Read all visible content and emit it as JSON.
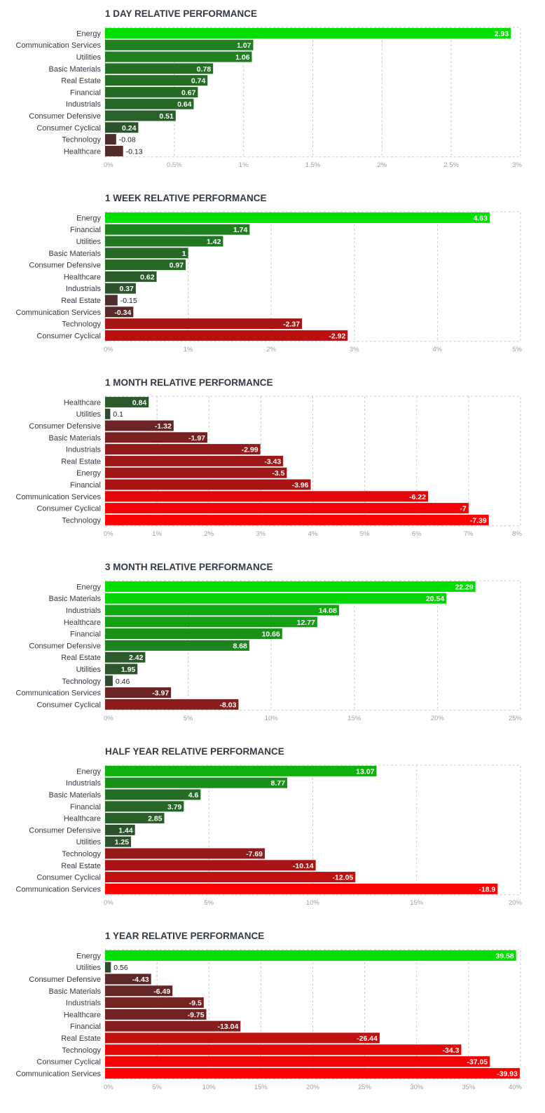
{
  "chart_data": [
    {
      "type": "bar",
      "orientation": "horizontal",
      "title": "1 DAY RELATIVE PERFORMANCE",
      "categories": [
        "Energy",
        "Communication Services",
        "Utilities",
        "Basic Materials",
        "Real Estate",
        "Financial",
        "Industrials",
        "Consumer Defensive",
        "Consumer Cyclical",
        "Technology",
        "Healthcare"
      ],
      "values": [
        2.93,
        1.07,
        1.06,
        0.78,
        0.74,
        0.67,
        0.64,
        0.51,
        0.24,
        -0.08,
        -0.13
      ],
      "value_labels": [
        "2.93",
        "1.07",
        "1.06",
        "0.78",
        "0.74",
        "0.67",
        "0.64",
        "0.51",
        "0.24",
        "-0.08",
        "-0.13"
      ],
      "xlim": [
        0,
        3
      ],
      "ticks": [
        0,
        0.5,
        1,
        1.5,
        2,
        2.5,
        3
      ],
      "tick_labels": [
        "0%",
        "0.5%",
        "1%",
        "1.5%",
        "2%",
        "2.5%",
        "3%"
      ],
      "bar_length": "absolute value",
      "grid": true
    },
    {
      "type": "bar",
      "orientation": "horizontal",
      "title": "1 WEEK RELATIVE PERFORMANCE",
      "categories": [
        "Energy",
        "Financial",
        "Utilities",
        "Basic Materials",
        "Consumer Defensive",
        "Healthcare",
        "Industrials",
        "Real Estate",
        "Communication Services",
        "Technology",
        "Consumer Cyclical"
      ],
      "values": [
        4.63,
        1.74,
        1.42,
        1,
        0.97,
        0.62,
        0.37,
        -0.15,
        -0.34,
        -2.37,
        -2.92
      ],
      "value_labels": [
        "4.63",
        "1.74",
        "1.42",
        "1",
        "0.97",
        "0.62",
        "0.37",
        "-0.15",
        "-0.34",
        "-2.37",
        "-2.92"
      ],
      "xlim": [
        0,
        5
      ],
      "ticks": [
        0,
        1,
        2,
        3,
        4,
        5
      ],
      "tick_labels": [
        "0%",
        "1%",
        "2%",
        "3%",
        "4%",
        "5%"
      ],
      "bar_length": "absolute value",
      "grid": true
    },
    {
      "type": "bar",
      "orientation": "horizontal",
      "title": "1 MONTH RELATIVE PERFORMANCE",
      "categories": [
        "Healthcare",
        "Utilities",
        "Consumer Defensive",
        "Basic Materials",
        "Industrials",
        "Real Estate",
        "Energy",
        "Financial",
        "Communication Services",
        "Consumer Cyclical",
        "Technology"
      ],
      "values": [
        0.84,
        0.1,
        -1.32,
        -1.97,
        -2.99,
        -3.43,
        -3.5,
        -3.96,
        -6.22,
        -7,
        -7.39
      ],
      "value_labels": [
        "0.84",
        "0.1",
        "-1.32",
        "-1.97",
        "-2.99",
        "-3.43",
        "-3.5",
        "-3.96",
        "-6.22",
        "-7",
        "-7.39"
      ],
      "xlim": [
        0,
        8
      ],
      "ticks": [
        0,
        1,
        2,
        3,
        4,
        5,
        6,
        7,
        8
      ],
      "tick_labels": [
        "0%",
        "1%",
        "2%",
        "3%",
        "4%",
        "5%",
        "6%",
        "7%",
        "8%"
      ],
      "bar_length": "absolute value",
      "grid": true
    },
    {
      "type": "bar",
      "orientation": "horizontal",
      "title": "3 MONTH RELATIVE PERFORMANCE",
      "categories": [
        "Energy",
        "Basic Materials",
        "Industrials",
        "Healthcare",
        "Financial",
        "Consumer Defensive",
        "Real Estate",
        "Utilities",
        "Technology",
        "Communication Services",
        "Consumer Cyclical"
      ],
      "values": [
        22.29,
        20.54,
        14.08,
        12.77,
        10.66,
        8.68,
        2.42,
        1.95,
        0.46,
        -3.97,
        -8.03
      ],
      "value_labels": [
        "22.29",
        "20.54",
        "14.08",
        "12.77",
        "10.66",
        "8.68",
        "2.42",
        "1.95",
        "0.46",
        "-3.97",
        "-8.03"
      ],
      "xlim": [
        0,
        25
      ],
      "ticks": [
        0,
        5,
        10,
        15,
        20,
        25
      ],
      "tick_labels": [
        "0%",
        "5%",
        "10%",
        "15%",
        "20%",
        "25%"
      ],
      "bar_length": "absolute value",
      "grid": true
    },
    {
      "type": "bar",
      "orientation": "horizontal",
      "title": "HALF YEAR RELATIVE PERFORMANCE",
      "categories": [
        "Energy",
        "Industrials",
        "Basic Materials",
        "Financial",
        "Healthcare",
        "Consumer Defensive",
        "Utilities",
        "Technology",
        "Real Estate",
        "Consumer Cyclical",
        "Communication Services"
      ],
      "values": [
        13.07,
        8.77,
        4.6,
        3.79,
        2.85,
        1.44,
        1.25,
        -7.69,
        -10.14,
        -12.05,
        -18.9
      ],
      "value_labels": [
        "13.07",
        "8.77",
        "4.6",
        "3.79",
        "2.85",
        "1.44",
        "1.25",
        "-7.69",
        "-10.14",
        "-12.05",
        "-18.9"
      ],
      "xlim": [
        0,
        20
      ],
      "ticks": [
        0,
        5,
        10,
        15,
        20
      ],
      "tick_labels": [
        "0%",
        "5%",
        "10%",
        "15%",
        "20%"
      ],
      "bar_length": "absolute value",
      "grid": true
    },
    {
      "type": "bar",
      "orientation": "horizontal",
      "title": "1 YEAR RELATIVE PERFORMANCE",
      "categories": [
        "Energy",
        "Utilities",
        "Consumer Defensive",
        "Basic Materials",
        "Industrials",
        "Healthcare",
        "Financial",
        "Real Estate",
        "Technology",
        "Consumer Cyclical",
        "Communication Services"
      ],
      "values": [
        39.58,
        0.56,
        -4.43,
        -6.49,
        -9.5,
        -9.75,
        -13.04,
        -26.44,
        -34.3,
        -37.05,
        -39.93
      ],
      "value_labels": [
        "39.58",
        "0.56",
        "-4.43",
        "-6.49",
        "-9.5",
        "-9.75",
        "-13.04",
        "-26.44",
        "-34.3",
        "-37.05",
        "-39.93"
      ],
      "xlim": [
        0,
        40
      ],
      "ticks": [
        0,
        5,
        10,
        15,
        20,
        25,
        30,
        35,
        40
      ],
      "tick_labels": [
        "0%",
        "5%",
        "10%",
        "15%",
        "20%",
        "25%",
        "30%",
        "35%",
        "40%"
      ],
      "bar_length": "absolute value",
      "grid": true
    }
  ],
  "colors": {
    "title": "#333a45",
    "label": "#333a45",
    "tick": "#9aa0a8",
    "grid": "#c8c8c8",
    "positive_strong": "#00e000",
    "positive_weak": "#304830",
    "negative_weak": "#4a2c2c",
    "negative_strong": "#ff0000"
  }
}
